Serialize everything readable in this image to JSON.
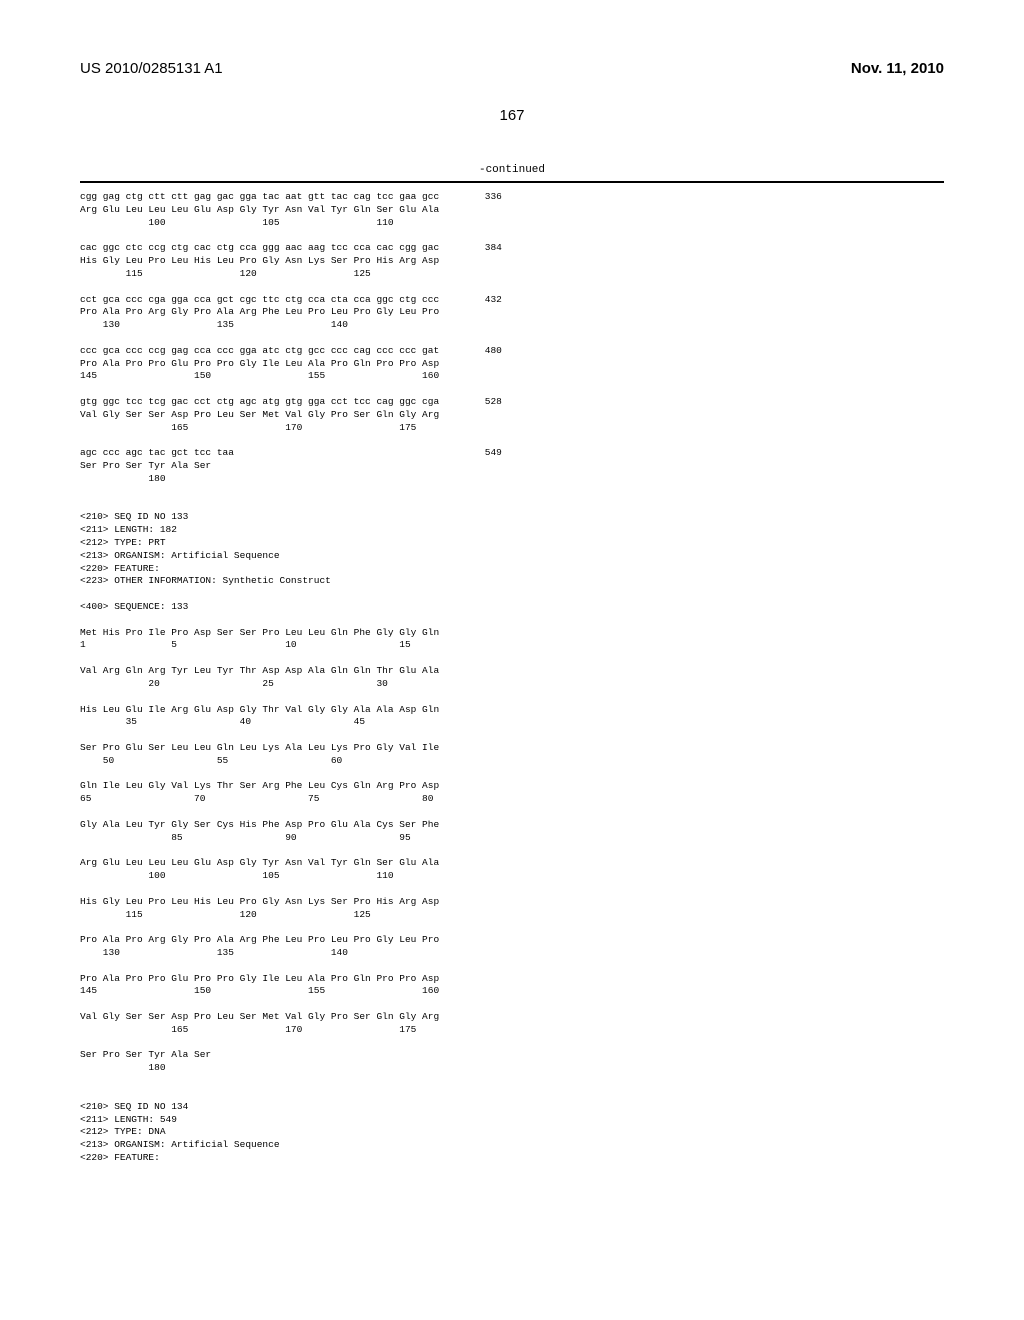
{
  "header": {
    "pub_number": "US 2010/0285131 A1",
    "pub_date": "Nov. 11, 2010",
    "page_number": "167"
  },
  "continued_label": "-continued",
  "seq_blocks": [
    {
      "codons": "cgg gag ctg ctt ctt gag gac gga tac aat gtt tac cag tcc gaa gcc",
      "aa": "Arg Glu Leu Leu Leu Glu Asp Gly Tyr Asn Val Tyr Gln Ser Glu Ala",
      "positions": "            100                 105                 110",
      "num": "336"
    },
    {
      "codons": "cac ggc ctc ccg ctg cac ctg cca ggg aac aag tcc cca cac cgg gac",
      "aa": "His Gly Leu Pro Leu His Leu Pro Gly Asn Lys Ser Pro His Arg Asp",
      "positions": "        115                 120                 125",
      "num": "384"
    },
    {
      "codons": "cct gca ccc cga gga cca gct cgc ttc ctg cca cta cca ggc ctg ccc",
      "aa": "Pro Ala Pro Arg Gly Pro Ala Arg Phe Leu Pro Leu Pro Gly Leu Pro",
      "positions": "    130                 135                 140",
      "num": "432"
    },
    {
      "codons": "ccc gca ccc ccg gag cca ccc gga atc ctg gcc ccc cag ccc ccc gat",
      "aa": "Pro Ala Pro Pro Glu Pro Pro Gly Ile Leu Ala Pro Gln Pro Pro Asp",
      "positions": "145                 150                 155                 160",
      "num": "480"
    },
    {
      "codons": "gtg ggc tcc tcg gac cct ctg agc atg gtg gga cct tcc cag ggc cga",
      "aa": "Val Gly Ser Ser Asp Pro Leu Ser Met Val Gly Pro Ser Gln Gly Arg",
      "positions": "                165                 170                 175",
      "num": "528"
    },
    {
      "codons": "agc ccc agc tac gct tcc taa",
      "aa": "Ser Pro Ser Tyr Ala Ser",
      "positions": "            180",
      "num": "549"
    }
  ],
  "seq_header_133": [
    "<210> SEQ ID NO 133",
    "<211> LENGTH: 182",
    "<212> TYPE: PRT",
    "<213> ORGANISM: Artificial Sequence",
    "<220> FEATURE:",
    "<223> OTHER INFORMATION: Synthetic Construct"
  ],
  "seq_400_133": "<400> SEQUENCE: 133",
  "protein_133": [
    {
      "aa": "Met His Pro Ile Pro Asp Ser Ser Pro Leu Leu Gln Phe Gly Gly Gln",
      "positions": "1               5                   10                  15"
    },
    {
      "aa": "Val Arg Gln Arg Tyr Leu Tyr Thr Asp Asp Ala Gln Gln Thr Glu Ala",
      "positions": "            20                  25                  30"
    },
    {
      "aa": "His Leu Glu Ile Arg Glu Asp Gly Thr Val Gly Gly Ala Ala Asp Gln",
      "positions": "        35                  40                  45"
    },
    {
      "aa": "Ser Pro Glu Ser Leu Leu Gln Leu Lys Ala Leu Lys Pro Gly Val Ile",
      "positions": "    50                  55                  60"
    },
    {
      "aa": "Gln Ile Leu Gly Val Lys Thr Ser Arg Phe Leu Cys Gln Arg Pro Asp",
      "positions": "65                  70                  75                  80"
    },
    {
      "aa": "Gly Ala Leu Tyr Gly Ser Cys His Phe Asp Pro Glu Ala Cys Ser Phe",
      "positions": "                85                  90                  95"
    },
    {
      "aa": "Arg Glu Leu Leu Leu Glu Asp Gly Tyr Asn Val Tyr Gln Ser Glu Ala",
      "positions": "            100                 105                 110"
    },
    {
      "aa": "His Gly Leu Pro Leu His Leu Pro Gly Asn Lys Ser Pro His Arg Asp",
      "positions": "        115                 120                 125"
    },
    {
      "aa": "Pro Ala Pro Arg Gly Pro Ala Arg Phe Leu Pro Leu Pro Gly Leu Pro",
      "positions": "    130                 135                 140"
    },
    {
      "aa": "Pro Ala Pro Pro Glu Pro Pro Gly Ile Leu Ala Pro Gln Pro Pro Asp",
      "positions": "145                 150                 155                 160"
    },
    {
      "aa": "Val Gly Ser Ser Asp Pro Leu Ser Met Val Gly Pro Ser Gln Gly Arg",
      "positions": "                165                 170                 175"
    },
    {
      "aa": "Ser Pro Ser Tyr Ala Ser",
      "positions": "            180"
    }
  ],
  "seq_header_134": [
    "<210> SEQ ID NO 134",
    "<211> LENGTH: 549",
    "<212> TYPE: DNA",
    "<213> ORGANISM: Artificial Sequence",
    "<220> FEATURE:"
  ]
}
